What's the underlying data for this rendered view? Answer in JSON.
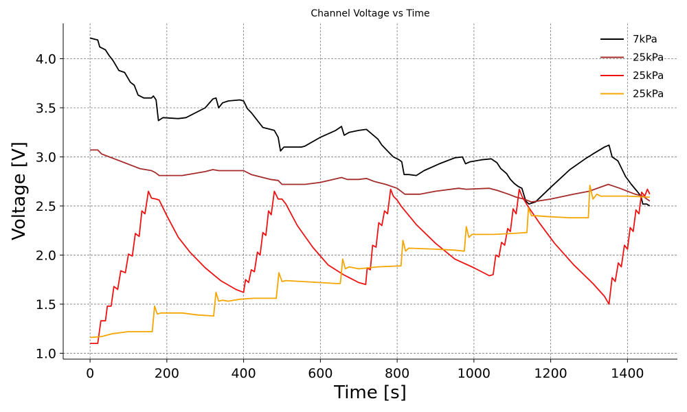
{
  "chart_data": {
    "type": "line",
    "title": "Channel Voltage vs Time",
    "xlabel": "Time [s]",
    "ylabel": "Voltage [V]",
    "xlim": [
      -70,
      1530
    ],
    "ylim": [
      0.94,
      4.36
    ],
    "xticks": [
      0,
      200,
      400,
      600,
      800,
      1000,
      1200,
      1400
    ],
    "yticks": [
      1.0,
      1.5,
      2.0,
      2.5,
      3.0,
      3.5,
      4.0
    ],
    "ytick_labels": [
      "1.0",
      "1.5",
      "2.0",
      "2.5",
      "3.0",
      "3.5",
      "4.0"
    ],
    "grid": true,
    "legend_position": "top-right",
    "series": [
      {
        "name": "7kPa",
        "color": "#000000",
        "points": [
          [
            0,
            4.21
          ],
          [
            20,
            4.19
          ],
          [
            25,
            4.12
          ],
          [
            40,
            4.09
          ],
          [
            50,
            4.03
          ],
          [
            60,
            3.98
          ],
          [
            75,
            3.88
          ],
          [
            90,
            3.86
          ],
          [
            105,
            3.76
          ],
          [
            115,
            3.73
          ],
          [
            125,
            3.63
          ],
          [
            140,
            3.6
          ],
          [
            160,
            3.6
          ],
          [
            165,
            3.62
          ],
          [
            172,
            3.58
          ],
          [
            178,
            3.37
          ],
          [
            190,
            3.4
          ],
          [
            230,
            3.39
          ],
          [
            250,
            3.4
          ],
          [
            300,
            3.5
          ],
          [
            320,
            3.59
          ],
          [
            328,
            3.6
          ],
          [
            335,
            3.5
          ],
          [
            345,
            3.55
          ],
          [
            360,
            3.57
          ],
          [
            390,
            3.58
          ],
          [
            400,
            3.57
          ],
          [
            410,
            3.49
          ],
          [
            420,
            3.45
          ],
          [
            430,
            3.4
          ],
          [
            440,
            3.35
          ],
          [
            450,
            3.3
          ],
          [
            470,
            3.28
          ],
          [
            480,
            3.27
          ],
          [
            490,
            3.2
          ],
          [
            496,
            3.06
          ],
          [
            505,
            3.1
          ],
          [
            550,
            3.1
          ],
          [
            560,
            3.11
          ],
          [
            600,
            3.2
          ],
          [
            640,
            3.27
          ],
          [
            655,
            3.31
          ],
          [
            662,
            3.22
          ],
          [
            675,
            3.25
          ],
          [
            700,
            3.27
          ],
          [
            720,
            3.28
          ],
          [
            735,
            3.23
          ],
          [
            750,
            3.18
          ],
          [
            760,
            3.12
          ],
          [
            775,
            3.06
          ],
          [
            790,
            3.0
          ],
          [
            805,
            2.97
          ],
          [
            812,
            2.95
          ],
          [
            818,
            2.82
          ],
          [
            830,
            2.82
          ],
          [
            850,
            2.81
          ],
          [
            870,
            2.86
          ],
          [
            910,
            2.93
          ],
          [
            950,
            2.99
          ],
          [
            970,
            3.0
          ],
          [
            978,
            2.93
          ],
          [
            990,
            2.95
          ],
          [
            1020,
            2.97
          ],
          [
            1045,
            2.98
          ],
          [
            1060,
            2.94
          ],
          [
            1070,
            2.88
          ],
          [
            1085,
            2.83
          ],
          [
            1095,
            2.77
          ],
          [
            1105,
            2.73
          ],
          [
            1115,
            2.7
          ],
          [
            1125,
            2.68
          ],
          [
            1135,
            2.55
          ],
          [
            1143,
            2.52
          ],
          [
            1160,
            2.54
          ],
          [
            1200,
            2.69
          ],
          [
            1250,
            2.87
          ],
          [
            1290,
            2.98
          ],
          [
            1310,
            3.03
          ],
          [
            1340,
            3.1
          ],
          [
            1352,
            3.12
          ],
          [
            1360,
            3.0
          ],
          [
            1375,
            2.96
          ],
          [
            1385,
            2.88
          ],
          [
            1395,
            2.8
          ],
          [
            1410,
            2.72
          ],
          [
            1425,
            2.65
          ],
          [
            1435,
            2.6
          ],
          [
            1440,
            2.52
          ],
          [
            1450,
            2.52
          ],
          [
            1458,
            2.5
          ]
        ]
      },
      {
        "name": "25kPa",
        "color": "#a52a2a",
        "points": [
          [
            0,
            3.07
          ],
          [
            20,
            3.07
          ],
          [
            30,
            3.03
          ],
          [
            50,
            3.0
          ],
          [
            70,
            2.97
          ],
          [
            90,
            2.94
          ],
          [
            110,
            2.91
          ],
          [
            130,
            2.88
          ],
          [
            160,
            2.86
          ],
          [
            170,
            2.84
          ],
          [
            180,
            2.81
          ],
          [
            240,
            2.81
          ],
          [
            300,
            2.85
          ],
          [
            320,
            2.87
          ],
          [
            335,
            2.86
          ],
          [
            360,
            2.86
          ],
          [
            400,
            2.86
          ],
          [
            420,
            2.82
          ],
          [
            450,
            2.79
          ],
          [
            470,
            2.77
          ],
          [
            490,
            2.76
          ],
          [
            500,
            2.72
          ],
          [
            560,
            2.72
          ],
          [
            600,
            2.74
          ],
          [
            655,
            2.79
          ],
          [
            670,
            2.77
          ],
          [
            700,
            2.77
          ],
          [
            720,
            2.78
          ],
          [
            740,
            2.75
          ],
          [
            770,
            2.72
          ],
          [
            800,
            2.68
          ],
          [
            820,
            2.62
          ],
          [
            860,
            2.62
          ],
          [
            900,
            2.65
          ],
          [
            960,
            2.68
          ],
          [
            980,
            2.67
          ],
          [
            1040,
            2.68
          ],
          [
            1060,
            2.66
          ],
          [
            1090,
            2.62
          ],
          [
            1110,
            2.59
          ],
          [
            1130,
            2.57
          ],
          [
            1150,
            2.54
          ],
          [
            1200,
            2.57
          ],
          [
            1260,
            2.62
          ],
          [
            1300,
            2.65
          ],
          [
            1350,
            2.72
          ],
          [
            1380,
            2.68
          ],
          [
            1420,
            2.62
          ],
          [
            1440,
            2.6
          ],
          [
            1458,
            2.55
          ]
        ]
      },
      {
        "name": "25kPa",
        "color": "#ee1111",
        "points": [
          [
            0,
            1.1
          ],
          [
            20,
            1.1
          ],
          [
            28,
            1.33
          ],
          [
            40,
            1.33
          ],
          [
            45,
            1.48
          ],
          [
            55,
            1.48
          ],
          [
            62,
            1.68
          ],
          [
            72,
            1.65
          ],
          [
            80,
            1.84
          ],
          [
            92,
            1.82
          ],
          [
            100,
            2.01
          ],
          [
            110,
            1.99
          ],
          [
            118,
            2.22
          ],
          [
            128,
            2.19
          ],
          [
            135,
            2.45
          ],
          [
            143,
            2.42
          ],
          [
            152,
            2.65
          ],
          [
            160,
            2.58
          ],
          [
            172,
            2.57
          ],
          [
            180,
            2.56
          ],
          [
            200,
            2.4
          ],
          [
            230,
            2.18
          ],
          [
            260,
            2.03
          ],
          [
            300,
            1.87
          ],
          [
            340,
            1.74
          ],
          [
            380,
            1.65
          ],
          [
            400,
            1.62
          ],
          [
            405,
            1.75
          ],
          [
            413,
            1.72
          ],
          [
            420,
            1.85
          ],
          [
            428,
            1.83
          ],
          [
            436,
            2.03
          ],
          [
            443,
            2.0
          ],
          [
            450,
            2.23
          ],
          [
            458,
            2.2
          ],
          [
            465,
            2.45
          ],
          [
            472,
            2.41
          ],
          [
            480,
            2.65
          ],
          [
            490,
            2.57
          ],
          [
            500,
            2.57
          ],
          [
            510,
            2.52
          ],
          [
            540,
            2.3
          ],
          [
            580,
            2.08
          ],
          [
            620,
            1.9
          ],
          [
            660,
            1.8
          ],
          [
            700,
            1.72
          ],
          [
            718,
            1.7
          ],
          [
            722,
            1.87
          ],
          [
            730,
            1.85
          ],
          [
            736,
            2.1
          ],
          [
            745,
            2.08
          ],
          [
            752,
            2.33
          ],
          [
            760,
            2.3
          ],
          [
            767,
            2.45
          ],
          [
            775,
            2.42
          ],
          [
            783,
            2.67
          ],
          [
            790,
            2.6
          ],
          [
            800,
            2.56
          ],
          [
            810,
            2.5
          ],
          [
            850,
            2.31
          ],
          [
            900,
            2.12
          ],
          [
            950,
            1.96
          ],
          [
            1000,
            1.87
          ],
          [
            1040,
            1.79
          ],
          [
            1050,
            1.8
          ],
          [
            1057,
            2.0
          ],
          [
            1065,
            1.98
          ],
          [
            1072,
            2.13
          ],
          [
            1080,
            2.1
          ],
          [
            1088,
            2.27
          ],
          [
            1095,
            2.24
          ],
          [
            1102,
            2.47
          ],
          [
            1110,
            2.42
          ],
          [
            1118,
            2.67
          ],
          [
            1125,
            2.6
          ],
          [
            1140,
            2.5
          ],
          [
            1170,
            2.33
          ],
          [
            1210,
            2.12
          ],
          [
            1260,
            1.9
          ],
          [
            1310,
            1.71
          ],
          [
            1340,
            1.58
          ],
          [
            1352,
            1.5
          ],
          [
            1360,
            1.77
          ],
          [
            1368,
            1.73
          ],
          [
            1376,
            1.92
          ],
          [
            1384,
            1.88
          ],
          [
            1392,
            2.1
          ],
          [
            1400,
            2.06
          ],
          [
            1407,
            2.28
          ],
          [
            1415,
            2.24
          ],
          [
            1422,
            2.46
          ],
          [
            1430,
            2.42
          ],
          [
            1437,
            2.64
          ],
          [
            1445,
            2.6
          ],
          [
            1452,
            2.67
          ],
          [
            1458,
            2.62
          ]
        ]
      },
      {
        "name": "25kPa",
        "color": "#f5a500",
        "points": [
          [
            0,
            1.16
          ],
          [
            30,
            1.17
          ],
          [
            60,
            1.2
          ],
          [
            100,
            1.22
          ],
          [
            162,
            1.22
          ],
          [
            168,
            1.48
          ],
          [
            175,
            1.4
          ],
          [
            185,
            1.41
          ],
          [
            240,
            1.41
          ],
          [
            280,
            1.39
          ],
          [
            322,
            1.38
          ],
          [
            328,
            1.62
          ],
          [
            335,
            1.53
          ],
          [
            345,
            1.54
          ],
          [
            360,
            1.53
          ],
          [
            390,
            1.55
          ],
          [
            425,
            1.56
          ],
          [
            485,
            1.56
          ],
          [
            492,
            1.82
          ],
          [
            500,
            1.73
          ],
          [
            510,
            1.74
          ],
          [
            600,
            1.72
          ],
          [
            640,
            1.71
          ],
          [
            652,
            1.71
          ],
          [
            658,
            1.96
          ],
          [
            665,
            1.86
          ],
          [
            675,
            1.88
          ],
          [
            700,
            1.86
          ],
          [
            750,
            1.88
          ],
          [
            810,
            1.89
          ],
          [
            815,
            2.15
          ],
          [
            822,
            2.04
          ],
          [
            830,
            2.07
          ],
          [
            900,
            2.06
          ],
          [
            950,
            2.05
          ],
          [
            975,
            2.04
          ],
          [
            980,
            2.29
          ],
          [
            987,
            2.18
          ],
          [
            995,
            2.21
          ],
          [
            1050,
            2.21
          ],
          [
            1100,
            2.22
          ],
          [
            1138,
            2.23
          ],
          [
            1142,
            2.48
          ],
          [
            1150,
            2.4
          ],
          [
            1160,
            2.4
          ],
          [
            1200,
            2.39
          ],
          [
            1250,
            2.38
          ],
          [
            1298,
            2.38
          ],
          [
            1302,
            2.71
          ],
          [
            1310,
            2.57
          ],
          [
            1320,
            2.62
          ],
          [
            1330,
            2.6
          ],
          [
            1400,
            2.6
          ],
          [
            1458,
            2.59
          ]
        ]
      }
    ]
  }
}
